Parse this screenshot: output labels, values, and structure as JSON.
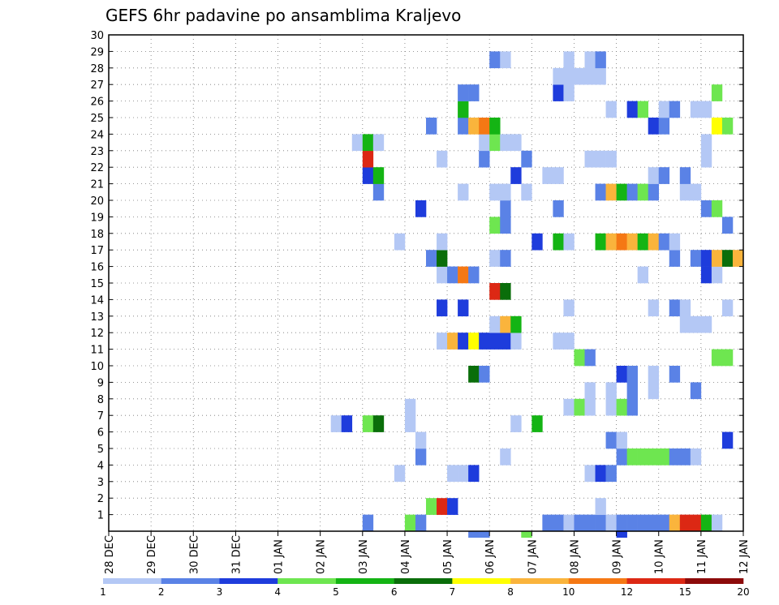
{
  "chart_data": {
    "type": "heatmap",
    "title": "GEFS 6hr padavine po ansamblima Kraljevo",
    "x_tick_labels": [
      "28 DEC",
      "29 DEC",
      "30 DEC",
      "31 DEC",
      "01 JAN",
      "02 JAN",
      "03 JAN",
      "04 JAN",
      "05 JAN",
      "06 JAN",
      "07 JAN",
      "08 JAN",
      "09 JAN",
      "10 JAN",
      "11 JAN",
      "12 JAN"
    ],
    "y_tick_labels": [
      "1",
      "2",
      "3",
      "4",
      "5",
      "6",
      "7",
      "8",
      "9",
      "10",
      "11",
      "12",
      "13",
      "14",
      "15",
      "16",
      "17",
      "18",
      "19",
      "20",
      "21",
      "22",
      "23",
      "24",
      "25",
      "26",
      "27",
      "28",
      "29",
      "30"
    ],
    "x_steps_per_day": 4,
    "n_steps": 60,
    "y_range": [
      0,
      30
    ],
    "grid": true,
    "legend_placement": "bottom",
    "colorbar": {
      "tick_labels": [
        "1",
        "2",
        "3",
        "4",
        "5",
        "6",
        "7",
        "8",
        "10",
        "12",
        "15",
        "20"
      ],
      "colors": [
        "#b4c8f5",
        "#5a82e6",
        "#1e3cdc",
        "#6ee650",
        "#14b414",
        "#0a6e0a",
        "#ffff00",
        "#fab43c",
        "#f57814",
        "#dc2814",
        "#8c0a0a"
      ]
    },
    "cells": [
      [
        25,
        1,
        1
      ],
      [
        29,
        1,
        3
      ],
      [
        30,
        1,
        1
      ],
      [
        42,
        1,
        1
      ],
      [
        43,
        1,
        1
      ],
      [
        44,
        1,
        0
      ],
      [
        45,
        1,
        1
      ],
      [
        46,
        1,
        1
      ],
      [
        47,
        1,
        1
      ],
      [
        48,
        1,
        0
      ],
      [
        49,
        1,
        1
      ],
      [
        50,
        1,
        1
      ],
      [
        51,
        1,
        1
      ],
      [
        52,
        1,
        1
      ],
      [
        53,
        1,
        1
      ],
      [
        54,
        1,
        7
      ],
      [
        55,
        1,
        9
      ],
      [
        56,
        1,
        9
      ],
      [
        57,
        1,
        4
      ],
      [
        58,
        1,
        0
      ],
      [
        31,
        2,
        3
      ],
      [
        32,
        2,
        9
      ],
      [
        33,
        2,
        2
      ],
      [
        47,
        2,
        0
      ],
      [
        28,
        4,
        0
      ],
      [
        33,
        4,
        0
      ],
      [
        34,
        4,
        0
      ],
      [
        35,
        4,
        2
      ],
      [
        46,
        4,
        0
      ],
      [
        47,
        4,
        2
      ],
      [
        48,
        4,
        1
      ],
      [
        30,
        5,
        1
      ],
      [
        38,
        5,
        0
      ],
      [
        49,
        5,
        1
      ],
      [
        50,
        5,
        3
      ],
      [
        51,
        5,
        3
      ],
      [
        52,
        5,
        3
      ],
      [
        53,
        5,
        3
      ],
      [
        54,
        5,
        1
      ],
      [
        55,
        5,
        1
      ],
      [
        56,
        5,
        0
      ],
      [
        30,
        6,
        0
      ],
      [
        48,
        6,
        1
      ],
      [
        49,
        6,
        0
      ],
      [
        59,
        6,
        2
      ],
      [
        22,
        7,
        0
      ],
      [
        23,
        7,
        2
      ],
      [
        25,
        7,
        3
      ],
      [
        26,
        7,
        5
      ],
      [
        29,
        7,
        0
      ],
      [
        39,
        7,
        0
      ],
      [
        41,
        7,
        4
      ],
      [
        29,
        8,
        0
      ],
      [
        44,
        8,
        0
      ],
      [
        45,
        8,
        3
      ],
      [
        46,
        8,
        0
      ],
      [
        48,
        8,
        0
      ],
      [
        49,
        8,
        3
      ],
      [
        50,
        8,
        1
      ],
      [
        46,
        9,
        0
      ],
      [
        48,
        9,
        0
      ],
      [
        50,
        9,
        1
      ],
      [
        52,
        9,
        0
      ],
      [
        56,
        9,
        1
      ],
      [
        35,
        10,
        5
      ],
      [
        36,
        10,
        1
      ],
      [
        49,
        10,
        2
      ],
      [
        50,
        10,
        1
      ],
      [
        52,
        10,
        0
      ],
      [
        54,
        10,
        1
      ],
      [
        45,
        11,
        3
      ],
      [
        46,
        11,
        1
      ],
      [
        58,
        11,
        3
      ],
      [
        59,
        11,
        3
      ],
      [
        32,
        12,
        0
      ],
      [
        33,
        12,
        7
      ],
      [
        34,
        12,
        2
      ],
      [
        35,
        12,
        6
      ],
      [
        36,
        12,
        2
      ],
      [
        37,
        12,
        2
      ],
      [
        38,
        12,
        2
      ],
      [
        39,
        12,
        0
      ],
      [
        43,
        12,
        0
      ],
      [
        44,
        12,
        0
      ],
      [
        37,
        13,
        0
      ],
      [
        38,
        13,
        7
      ],
      [
        39,
        13,
        4
      ],
      [
        55,
        13,
        0
      ],
      [
        56,
        13,
        0
      ],
      [
        57,
        13,
        0
      ],
      [
        32,
        14,
        2
      ],
      [
        34,
        14,
        2
      ],
      [
        44,
        14,
        0
      ],
      [
        52,
        14,
        0
      ],
      [
        54,
        14,
        1
      ],
      [
        55,
        14,
        0
      ],
      [
        59,
        14,
        0
      ],
      [
        37,
        15,
        9
      ],
      [
        38,
        15,
        5
      ],
      [
        32,
        16,
        0
      ],
      [
        33,
        16,
        1
      ],
      [
        34,
        16,
        8
      ],
      [
        35,
        16,
        1
      ],
      [
        51,
        16,
        0
      ],
      [
        57,
        16,
        2
      ],
      [
        58,
        16,
        0
      ],
      [
        31,
        17,
        1
      ],
      [
        32,
        17,
        5
      ],
      [
        37,
        17,
        0
      ],
      [
        38,
        17,
        1
      ],
      [
        54,
        17,
        1
      ],
      [
        56,
        17,
        1
      ],
      [
        57,
        17,
        2
      ],
      [
        58,
        17,
        7
      ],
      [
        59,
        17,
        5
      ],
      [
        60,
        17,
        7
      ],
      [
        28,
        18,
        0
      ],
      [
        32,
        18,
        0
      ],
      [
        41,
        18,
        2
      ],
      [
        43,
        18,
        4
      ],
      [
        44,
        18,
        0
      ],
      [
        47,
        18,
        4
      ],
      [
        48,
        18,
        7
      ],
      [
        49,
        18,
        8
      ],
      [
        50,
        18,
        7
      ],
      [
        51,
        18,
        4
      ],
      [
        52,
        18,
        7
      ],
      [
        53,
        18,
        1
      ],
      [
        54,
        18,
        0
      ],
      [
        37,
        19,
        3
      ],
      [
        38,
        19,
        1
      ],
      [
        59,
        19,
        1
      ],
      [
        30,
        20,
        2
      ],
      [
        38,
        20,
        1
      ],
      [
        43,
        20,
        1
      ],
      [
        57,
        20,
        1
      ],
      [
        58,
        20,
        3
      ],
      [
        26,
        21,
        1
      ],
      [
        34,
        21,
        0
      ],
      [
        37,
        21,
        0
      ],
      [
        38,
        21,
        0
      ],
      [
        40,
        21,
        0
      ],
      [
        47,
        21,
        1
      ],
      [
        48,
        21,
        7
      ],
      [
        49,
        21,
        4
      ],
      [
        50,
        21,
        1
      ],
      [
        51,
        21,
        3
      ],
      [
        52,
        21,
        1
      ],
      [
        55,
        21,
        0
      ],
      [
        56,
        21,
        0
      ],
      [
        25,
        22,
        2
      ],
      [
        26,
        22,
        4
      ],
      [
        39,
        22,
        2
      ],
      [
        42,
        22,
        0
      ],
      [
        43,
        22,
        0
      ],
      [
        52,
        22,
        0
      ],
      [
        53,
        22,
        1
      ],
      [
        55,
        22,
        1
      ],
      [
        25,
        23,
        9
      ],
      [
        32,
        23,
        0
      ],
      [
        36,
        23,
        1
      ],
      [
        40,
        23,
        1
      ],
      [
        46,
        23,
        0
      ],
      [
        47,
        23,
        0
      ],
      [
        48,
        23,
        0
      ],
      [
        57,
        23,
        0
      ],
      [
        24,
        24,
        0
      ],
      [
        25,
        24,
        4
      ],
      [
        26,
        24,
        0
      ],
      [
        36,
        24,
        0
      ],
      [
        37,
        24,
        3
      ],
      [
        38,
        24,
        0
      ],
      [
        39,
        24,
        0
      ],
      [
        57,
        24,
        0
      ],
      [
        31,
        25,
        1
      ],
      [
        34,
        25,
        1
      ],
      [
        35,
        25,
        7
      ],
      [
        36,
        25,
        8
      ],
      [
        37,
        25,
        4
      ],
      [
        52,
        25,
        2
      ],
      [
        53,
        25,
        1
      ],
      [
        58,
        25,
        6
      ],
      [
        59,
        25,
        3
      ],
      [
        34,
        26,
        4
      ],
      [
        48,
        26,
        0
      ],
      [
        50,
        26,
        2
      ],
      [
        51,
        26,
        3
      ],
      [
        53,
        26,
        0
      ],
      [
        54,
        26,
        1
      ],
      [
        56,
        26,
        0
      ],
      [
        57,
        26,
        0
      ],
      [
        34,
        27,
        1
      ],
      [
        35,
        27,
        1
      ],
      [
        43,
        27,
        2
      ],
      [
        44,
        27,
        0
      ],
      [
        58,
        27,
        3
      ],
      [
        43,
        28,
        0
      ],
      [
        44,
        28,
        0
      ],
      [
        45,
        28,
        0
      ],
      [
        46,
        28,
        0
      ],
      [
        47,
        28,
        0
      ],
      [
        37,
        29,
        1
      ],
      [
        38,
        29,
        0
      ],
      [
        44,
        29,
        0
      ],
      [
        46,
        29,
        0
      ],
      [
        47,
        29,
        1
      ]
    ],
    "below_axis_cells": [
      [
        35,
        1
      ],
      [
        36,
        1
      ],
      [
        40,
        3
      ],
      [
        49,
        2
      ]
    ]
  }
}
